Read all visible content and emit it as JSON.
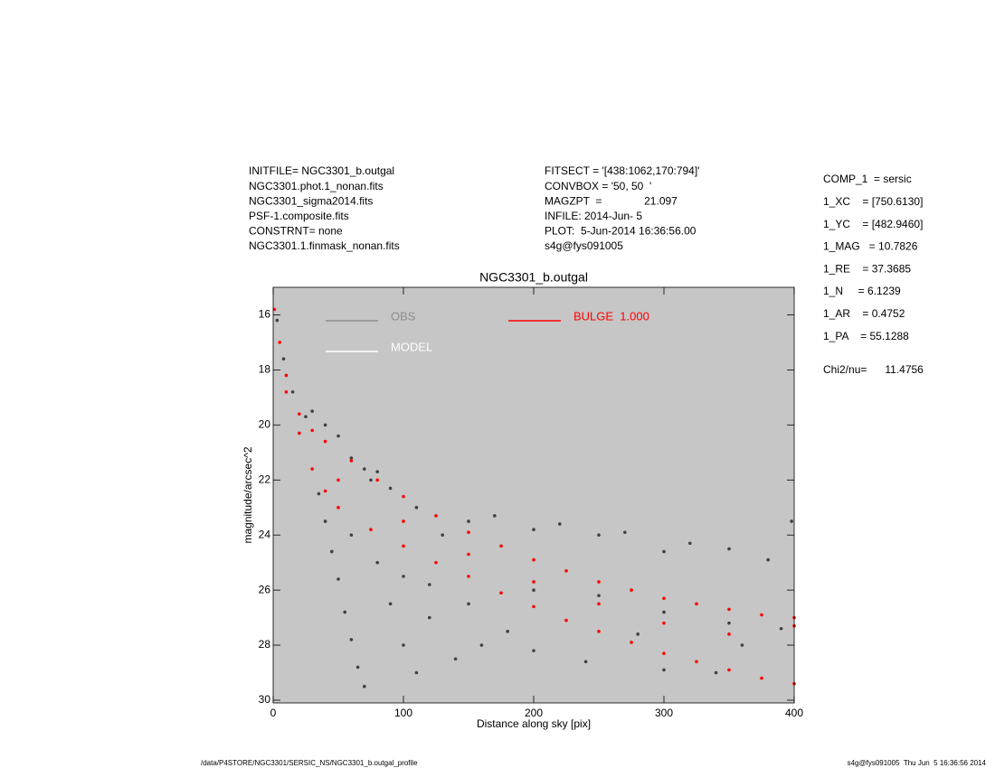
{
  "header": {
    "left_lines": [
      "INITFILE= NGC3301_b.outgal",
      "NGC3301.phot.1_nonan.fits",
      "NGC3301_sigma2014.fits",
      "PSF-1.composite.fits",
      "CONSTRNT= none",
      "NGC3301.1.finmask_nonan.fits"
    ],
    "middle_lines": [
      "FITSECT = '[438:1062,170:794]'",
      "CONVBOX = '50, 50  '",
      "MAGZPT  =              21.097",
      "INFILE: 2014-Jun- 5",
      "PLOT:  5-Jun-2014 16:36:56.00",
      "s4g@fys091005"
    ],
    "right_lines": [
      "COMP_1  = sersic",
      "1_XC    = [750.6130]",
      "1_YC    = [482.9460]",
      "1_MAG   = 10.7826",
      "1_RE    = 37.3685",
      "1_N     = 6.1239",
      "1_AR    = 0.4752",
      "1_PA    = 55.1288"
    ],
    "chi2": "Chi2/nu=      11.4756"
  },
  "chart_data": {
    "type": "scatter",
    "title": "NGC3301_b.outgal",
    "x_label": "Distance along sky [pix]",
    "y_label": "magnitude/arcsec^2",
    "xlim": [
      0,
      400
    ],
    "xticks": [
      0,
      100,
      200,
      300,
      400
    ],
    "ylim": [
      15,
      30.1
    ],
    "yticks": [
      16,
      18,
      20,
      22,
      24,
      26,
      28,
      30
    ],
    "y_inverted": true,
    "background": "#c6c6c6",
    "legend": "upper left",
    "series": [
      {
        "name": "OBS",
        "color": "#404040",
        "legend_color": "#8c8c8c",
        "x": [
          3,
          8,
          15,
          25,
          30,
          40,
          50,
          60,
          70,
          80,
          90,
          35,
          40,
          45,
          50,
          55,
          60,
          65,
          70,
          80,
          90,
          100,
          110,
          120,
          130,
          150,
          170,
          200,
          220,
          250,
          270,
          300,
          320,
          350,
          380,
          398,
          140,
          160,
          180,
          200,
          240,
          280,
          300,
          340,
          360,
          390,
          100,
          150,
          200,
          250,
          300,
          350,
          120,
          60,
          75,
          110
        ],
        "values": [
          16.2,
          17.6,
          18.8,
          19.7,
          19.5,
          20.0,
          20.4,
          21.2,
          21.6,
          21.7,
          22.3,
          22.5,
          23.5,
          24.6,
          25.6,
          26.8,
          27.8,
          28.8,
          29.5,
          25.0,
          26.5,
          28.0,
          29.0,
          27.0,
          24.0,
          23.5,
          23.3,
          23.8,
          23.6,
          24.0,
          23.9,
          24.6,
          24.3,
          24.5,
          24.9,
          23.5,
          28.5,
          28.0,
          27.5,
          28.2,
          28.6,
          27.6,
          28.9,
          29.0,
          28.0,
          27.4,
          25.5,
          26.5,
          26.0,
          26.2,
          26.8,
          27.2,
          25.8,
          24.0,
          22.0,
          23.0
        ]
      },
      {
        "name": "MODEL",
        "color": "#ffffff",
        "legend_color": "#ffffff",
        "x": [],
        "values": []
      },
      {
        "name": "BULGE  1.000",
        "color": "#ff0000",
        "legend_color": "#ff0000",
        "x": [
          1,
          5,
          10,
          20,
          30,
          40,
          60,
          80,
          100,
          125,
          150,
          175,
          200,
          225,
          250,
          275,
          300,
          325,
          350,
          375,
          400,
          10,
          20,
          30,
          40,
          50,
          75,
          100,
          125,
          150,
          175,
          200,
          225,
          250,
          275,
          300,
          325,
          350,
          375,
          400,
          50,
          100,
          150,
          200,
          250,
          300,
          350,
          400
        ],
        "values": [
          15.8,
          17.0,
          18.2,
          19.6,
          20.2,
          20.6,
          21.3,
          22.0,
          22.6,
          23.3,
          23.9,
          24.4,
          24.9,
          25.3,
          25.7,
          26.0,
          26.3,
          26.5,
          26.7,
          26.9,
          27.0,
          18.8,
          20.3,
          21.6,
          22.4,
          23.0,
          23.8,
          24.4,
          25.0,
          25.5,
          26.1,
          26.6,
          27.1,
          27.5,
          27.9,
          28.3,
          28.6,
          28.9,
          29.2,
          29.4,
          22.0,
          23.5,
          24.7,
          25.7,
          26.5,
          27.2,
          27.6,
          27.3
        ]
      }
    ]
  },
  "footer": {
    "left": "/data/P4STORE/NGC3301/SERSIC_NS/NGC3301_b.outgal_profile",
    "right": "s4g@fys091005  Thu Jun  5 16:36:56 2014"
  }
}
